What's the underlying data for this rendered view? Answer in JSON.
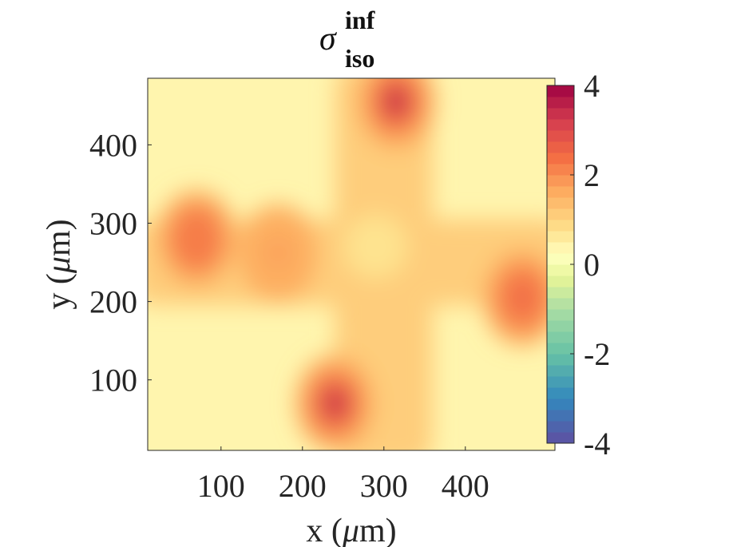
{
  "chart_data": {
    "type": "heatmap",
    "title": {
      "symbol": "σ",
      "superscript": "inf",
      "subscript": "iso"
    },
    "xlabel": {
      "var": "x (",
      "unit_mu": "μ",
      "unit_rest": "m)"
    },
    "ylabel": {
      "var": "y (",
      "unit_mu": "μ",
      "unit_rest": "m)"
    },
    "xlim": [
      10,
      510
    ],
    "ylim": [
      10,
      485
    ],
    "x_ticks": [
      100,
      200,
      300,
      400
    ],
    "y_ticks": [
      100,
      200,
      300,
      400
    ],
    "colorbar": {
      "range": [
        -4,
        4
      ],
      "ticks": [
        4,
        2,
        0,
        -2,
        -4
      ],
      "colormap": "Spectral (reversed)",
      "levels": 32,
      "placement": "right-inside"
    },
    "field_description": {
      "background_value": 0.4,
      "shape": "cross",
      "arms": {
        "vertical_center_x": 300,
        "horizontal_center_y": 250
      },
      "hotspots": [
        {
          "x": 315,
          "y": 455,
          "value": 3.6
        },
        {
          "x": 240,
          "y": 70,
          "value": 3.5
        },
        {
          "x": 470,
          "y": 205,
          "value": 2.6
        },
        {
          "x": 70,
          "y": 280,
          "value": 2.2
        },
        {
          "x": 170,
          "y": 262,
          "value": 1.9
        }
      ]
    },
    "grid": false
  }
}
